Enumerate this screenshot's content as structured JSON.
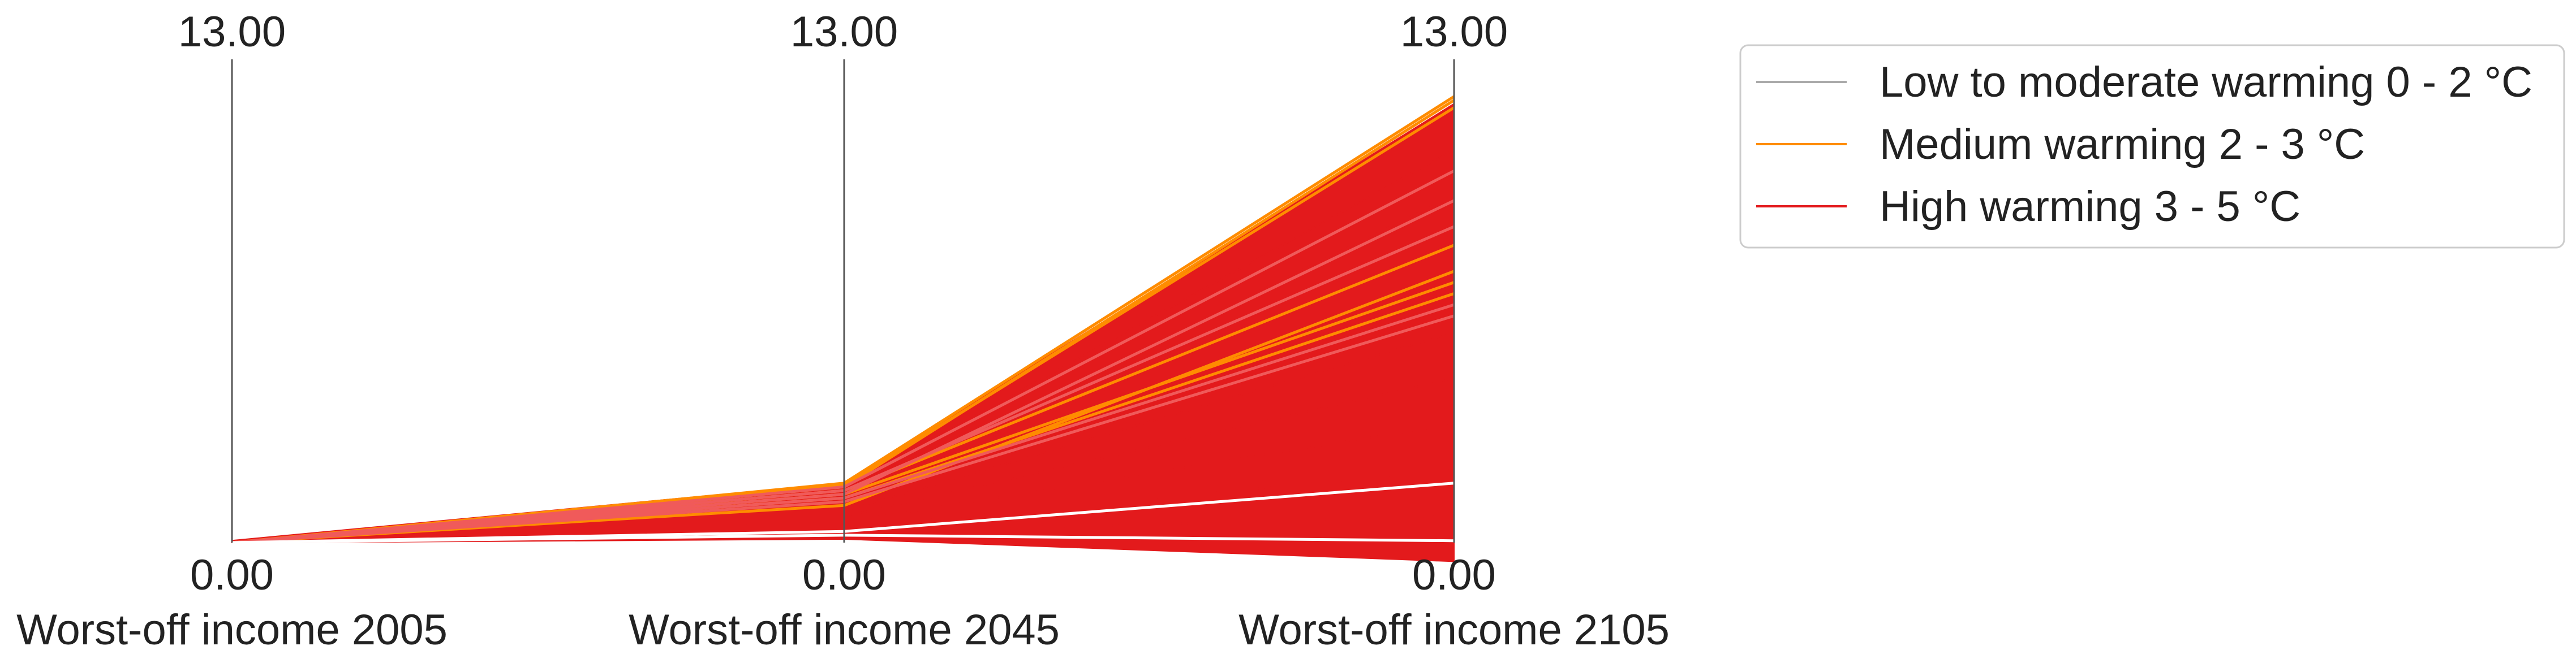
{
  "chart_data": {
    "type": "parallel-coordinates",
    "axes": [
      {
        "label": "Worst-off income 2005",
        "min": 0.0,
        "max": 13.0,
        "min_label": "0.00",
        "max_label": "13.00"
      },
      {
        "label": "Worst-off income 2045",
        "min": 0.0,
        "max": 13.0,
        "min_label": "0.00",
        "max_label": "13.00"
      },
      {
        "label": "Worst-off income 2105",
        "min": 0.0,
        "max": 13.0,
        "min_label": "0.00",
        "max_label": "13.00"
      }
    ],
    "legend": {
      "position": "right",
      "entries": [
        {
          "label": "Low to moderate warming 0 - 2 °C",
          "color": "#aaaaaa"
        },
        {
          "label": "Medium warming 2 - 3 °C",
          "color": "#ff8c00"
        },
        {
          "label": "High warming 3 - 5 °C",
          "color": "#e31a1c"
        }
      ]
    },
    "series": [
      {
        "group": "High warming 3 - 5 °C",
        "color": "#e31a1c",
        "band": {
          "2005": [
            0.0,
            0.05
          ],
          "2045": [
            0.1,
            1.6
          ],
          "2105": [
            -0.5,
            11.8
          ]
        }
      },
      {
        "group": "Medium warming 2 - 3 °C",
        "color": "#ff8c00",
        "lines": [
          [
            0.0,
            1.6,
            12.0
          ],
          [
            0.0,
            1.55,
            11.7
          ],
          [
            0.0,
            1.5,
            11.9
          ],
          [
            0.0,
            1.3,
            7.0
          ],
          [
            0.0,
            1.2,
            6.7
          ],
          [
            0.0,
            1.4,
            8.0
          ],
          [
            0.0,
            1.0,
            7.3
          ]
        ]
      },
      {
        "group": "High warming 3 - 5 °C (light highlight)",
        "color": "#f05a5a",
        "lines": [
          [
            0.0,
            1.3,
            9.2
          ],
          [
            0.0,
            1.4,
            8.5
          ],
          [
            0.0,
            1.2,
            6.4
          ],
          [
            0.0,
            1.1,
            6.1
          ],
          [
            0.0,
            1.5,
            10.0
          ]
        ]
      },
      {
        "group": "highlight",
        "color": "#ffffff",
        "lines": [
          [
            0.0,
            0.3,
            1.6
          ],
          [
            0.0,
            0.2,
            0.05
          ]
        ]
      }
    ],
    "grid": false
  }
}
